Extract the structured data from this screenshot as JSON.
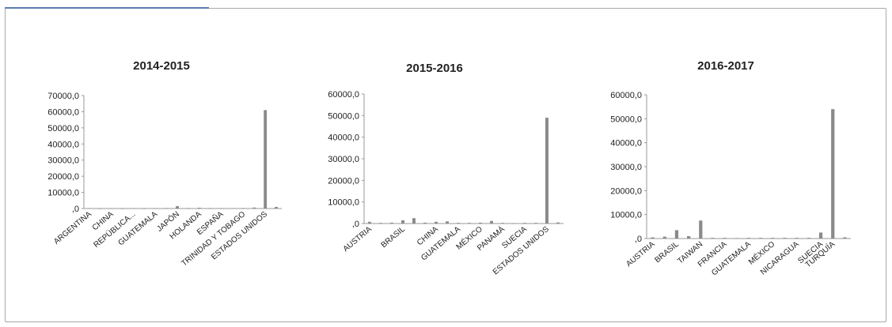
{
  "chart_data": [
    {
      "type": "bar",
      "title": "2014-2015",
      "categories": [
        "ARGENTINA",
        "",
        "CHINA",
        "",
        "REPÚBLICA...",
        "",
        "GUATEMALA",
        "",
        "JAPÓN",
        "",
        "HOLANDA",
        "",
        "ESPAÑA",
        "",
        "TRINIDAD Y TOBAGO",
        "",
        "ESTADOS UNIDOS",
        ""
      ],
      "values": [
        200,
        100,
        150,
        100,
        150,
        100,
        200,
        300,
        1500,
        300,
        500,
        300,
        300,
        200,
        300,
        600,
        61000,
        1000
      ],
      "yticks": [
        "70000,0",
        "60000,0",
        "50000,0",
        "40000,0",
        "30000,0",
        "20000,0",
        "10000,0",
        ",0"
      ],
      "ylim": [
        0,
        70000
      ]
    },
    {
      "type": "bar",
      "title": "2015-2016",
      "categories": [
        "AUSTRIA",
        "",
        "",
        "BRASIL",
        "",
        "",
        "CHINA",
        "",
        "GUATEMALA",
        "",
        "MÉXICO",
        "",
        "PANAMÁ",
        "",
        "SUECIA",
        "",
        "ESTADOS UNIDOS",
        ""
      ],
      "values": [
        800,
        300,
        400,
        1500,
        2500,
        400,
        800,
        1000,
        300,
        300,
        400,
        1200,
        300,
        200,
        300,
        300,
        49000,
        500
      ],
      "yticks": [
        "60000,0",
        "50000,0",
        "40000,0",
        "30000,0",
        "20000,0",
        "10000,0",
        ",0"
      ],
      "ylim": [
        0,
        60000
      ]
    },
    {
      "type": "bar",
      "title": "2016-2017",
      "categories": [
        "AUSTRIA",
        "",
        "BRASIL",
        "",
        "TAIWAN",
        "",
        "FRANCIA",
        "",
        "GUATEMALA",
        "",
        "MÉXICO",
        "",
        "NICARAGUA",
        "",
        "SUECIA",
        "TURQUÍA",
        ""
      ],
      "values": [
        500,
        800,
        3500,
        1000,
        7500,
        300,
        300,
        200,
        300,
        300,
        300,
        300,
        300,
        300,
        2500,
        54000,
        500
      ],
      "yticks": [
        "60000,0",
        "50000,0",
        "40000,0",
        "30000,0",
        "20000,0",
        "10000,0",
        ",0"
      ],
      "ylim": [
        0,
        60000
      ]
    }
  ],
  "bar_color": "#8a8a8a"
}
